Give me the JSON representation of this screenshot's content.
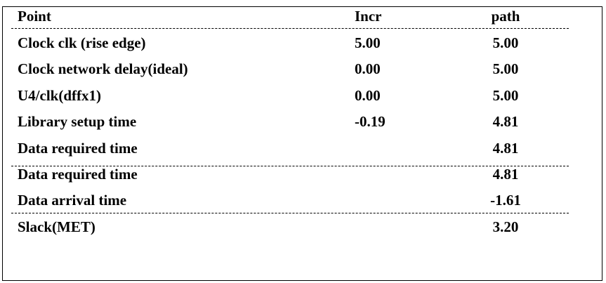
{
  "table": {
    "headers": {
      "point": "Point",
      "incr": "Incr",
      "path": "path"
    },
    "rows": [
      {
        "point": "Clock clk (rise edge)",
        "incr": "5.00",
        "path": "5.00"
      },
      {
        "point": "Clock network delay(ideal)",
        "incr": "0.00",
        "path": "5.00"
      },
      {
        "point": "U4/clk(dffx1)",
        "incr": "0.00",
        "path": "5.00"
      },
      {
        "point": "Library setup time",
        "incr": "-0.19",
        "path": "4.81"
      },
      {
        "point": "Data required time",
        "incr": "",
        "path": "4.81"
      },
      {
        "point": "Data required time",
        "incr": "",
        "path": "4.81"
      },
      {
        "point": "Data arrival time",
        "incr": "",
        "path": "-1.61"
      },
      {
        "point": "Slack(MET)",
        "incr": "",
        "path": "3.20"
      }
    ]
  }
}
